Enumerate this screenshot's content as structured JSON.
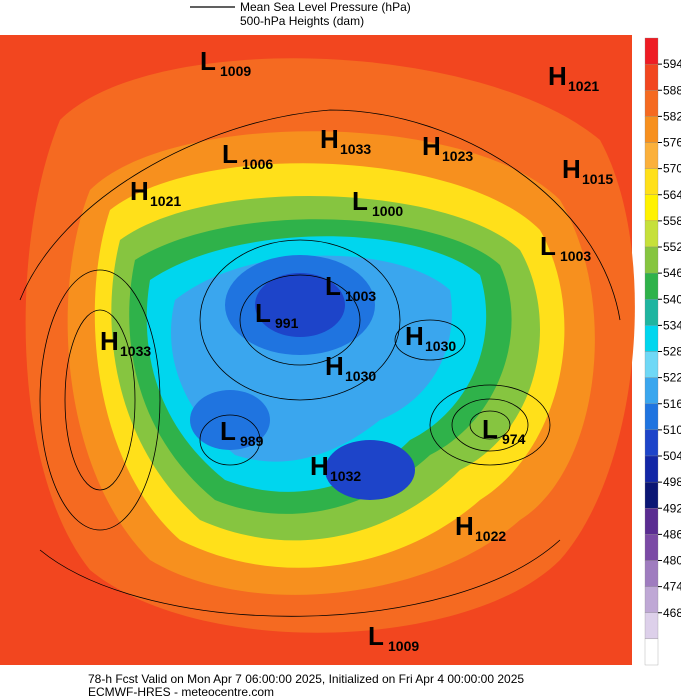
{
  "legend": {
    "line1": "Mean Sea Level Pressure (hPa)",
    "line2": "500-hPa Heights (dam)"
  },
  "colorbar": {
    "ticks": [
      594,
      588,
      582,
      576,
      570,
      564,
      558,
      552,
      546,
      540,
      534,
      528,
      522,
      516,
      510,
      504,
      498,
      492,
      486,
      480,
      474,
      468
    ],
    "colors": [
      "#ee1c24",
      "#f2461f",
      "#f56a21",
      "#f7901e",
      "#fbb03b",
      "#ffe01a",
      "#fff200",
      "#c6e03a",
      "#86c540",
      "#2fb24a",
      "#1fb5a0",
      "#00d6ee",
      "#6fd8f6",
      "#3aa6ee",
      "#1f74e0",
      "#1d44c9",
      "#1226a6",
      "#0b1674",
      "#5a2c91",
      "#7b4aa5",
      "#9f7cbf",
      "#bfa8d5",
      "#ddd0ea",
      "#ffffff"
    ]
  },
  "pressure_centers": [
    {
      "letter": "L",
      "value": "1009"
    },
    {
      "letter": "H",
      "value": "1021"
    },
    {
      "letter": "H",
      "value": "1033"
    },
    {
      "letter": "H",
      "value": "1023"
    },
    {
      "letter": "L",
      "value": "1006"
    },
    {
      "letter": "H",
      "value": "1015"
    },
    {
      "letter": "H",
      "value": "1021"
    },
    {
      "letter": "L",
      "value": "1000"
    },
    {
      "letter": "L",
      "value": "1003"
    },
    {
      "letter": "L",
      "value": "1003"
    },
    {
      "letter": "L",
      "value": "991"
    },
    {
      "letter": "H",
      "value": "1033"
    },
    {
      "letter": "H",
      "value": "1030"
    },
    {
      "letter": "H",
      "value": "1030"
    },
    {
      "letter": "L",
      "value": "989"
    },
    {
      "letter": "L",
      "value": "974"
    },
    {
      "letter": "H",
      "value": "1032"
    },
    {
      "letter": "H",
      "value": "1022"
    },
    {
      "letter": "L",
      "value": "1009"
    }
  ],
  "footer": {
    "line1": "78-h Fcst Valid on Mon Apr  7 06:00:00 2025, Initialized on Fri Apr  4 00:00:00 2025",
    "line2": "ECMWF-HRES  - meteocentre.com"
  }
}
